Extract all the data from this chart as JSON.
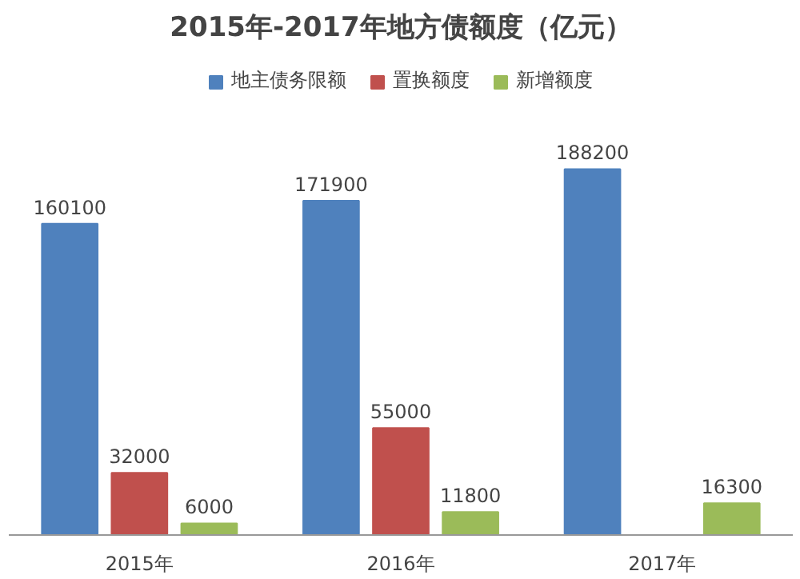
{
  "chart_data": {
    "type": "bar",
    "title": "2015年-2017年地方债额度（亿元）",
    "categories": [
      "2015年",
      "2016年",
      "2017年"
    ],
    "series": [
      {
        "name": "地主债务限额",
        "color": "#4f81bd",
        "values": [
          160100,
          171900,
          188200
        ]
      },
      {
        "name": "置换额度",
        "color": "#c0504d",
        "values": [
          32000,
          55000,
          null
        ]
      },
      {
        "name": "新增额度",
        "color": "#9bbb59",
        "values": [
          6000,
          11800,
          16300
        ]
      }
    ],
    "data_labels": true,
    "legend": "top",
    "grid": false
  }
}
